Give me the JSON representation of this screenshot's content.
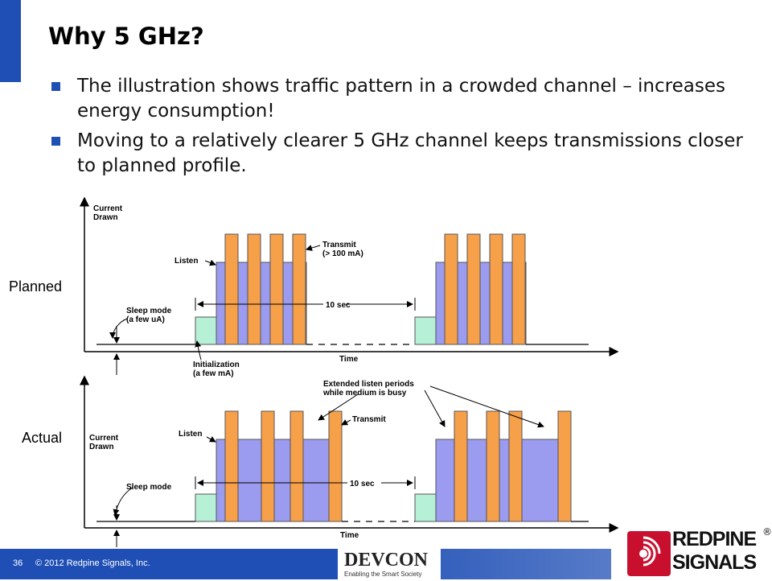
{
  "slide": {
    "title": "Why 5 GHz?",
    "bullets": [
      "The illustration shows traffic pattern in a crowded channel – increases energy consumption!",
      "Moving to a relatively clearer 5 GHz channel keeps transmissions closer to planned profile."
    ]
  },
  "diagram": {
    "planned": {
      "row_label": "Planned",
      "y_axis_label": [
        "Current",
        "Drawn"
      ],
      "x_axis_label": "Time",
      "listen_label": "Listen",
      "transmit_label": [
        "Transmit",
        "(> 100 mA)"
      ],
      "sleep_label": [
        "Sleep mode",
        "(a few uA)"
      ],
      "init_label": [
        "Initialization",
        "(a few mA)"
      ],
      "interval_label": "10 sec"
    },
    "actual": {
      "row_label": "Actual",
      "y_axis_label": [
        "Current",
        "Drawn"
      ],
      "x_axis_label": "Time",
      "listen_label": "Listen",
      "transmit_label": "Transmit",
      "sleep_label": "Sleep mode",
      "interval_label": "10 sec",
      "extended_label": [
        "Extended listen periods",
        "while medium is busy"
      ]
    },
    "colors": {
      "transmit": "#f7a04a",
      "listen": "#9b9bf0",
      "init": "#b5f0d7",
      "axis": "#000000"
    }
  },
  "footer": {
    "page_number": "36",
    "copyright": "© 2012 Redpine Signals, Inc.",
    "event_logo": "DEVCON",
    "event_tagline": "Enabling the Smart Society",
    "company_logo": [
      "REDPINE",
      "SIGNALS"
    ],
    "registered_mark": "®"
  }
}
